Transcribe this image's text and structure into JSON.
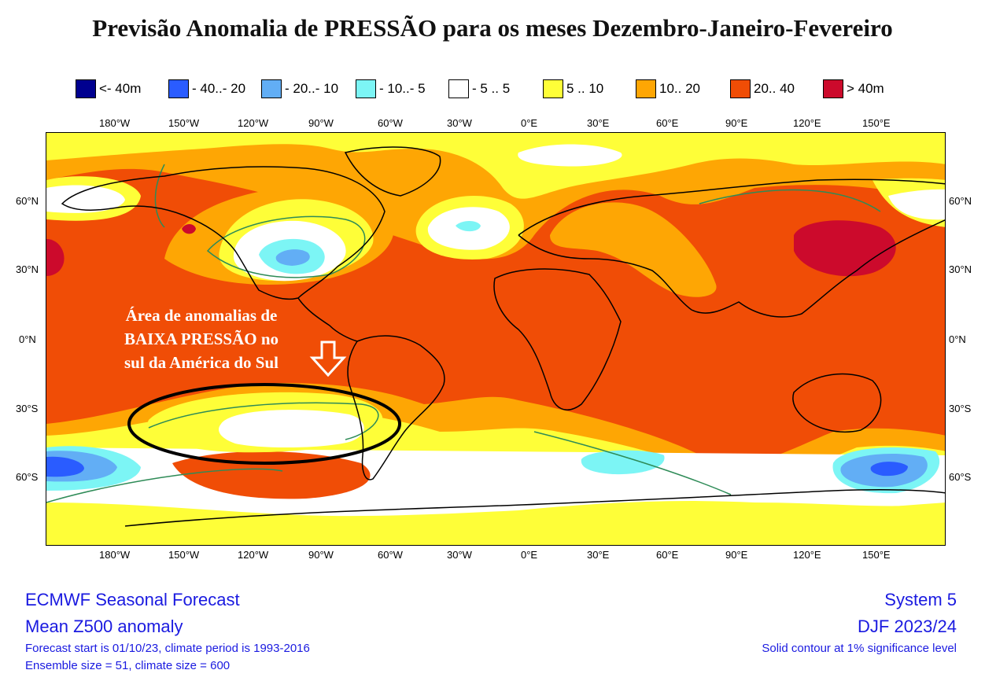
{
  "title": "Previsão Anomalia de PRESSÃO para os meses Dezembro-Janeiro-Fevereiro",
  "legend": [
    {
      "label": "<- 40m",
      "color": "#00008f"
    },
    {
      "label": "- 40..- 20",
      "color": "#2a5cff"
    },
    {
      "label": "- 20..- 10",
      "color": "#62aef5"
    },
    {
      "label": "- 10..- 5",
      "color": "#7cf5f5"
    },
    {
      "label": "- 5 .. 5",
      "color": "#ffffff"
    },
    {
      "label": "5 .. 10",
      "color": "#fefe38"
    },
    {
      "label": "10.. 20",
      "color": "#fea604"
    },
    {
      "label": "20.. 40",
      "color": "#f04d06"
    },
    {
      "label": "> 40m",
      "color": "#cc0a2c"
    }
  ],
  "lon_ticks": [
    "180°W",
    "150°W",
    "120°W",
    "90°W",
    "60°W",
    "30°W",
    "0°E",
    "30°E",
    "60°E",
    "90°E",
    "120°E",
    "150°E"
  ],
  "lat_ticks": [
    "60°N",
    "30°N",
    "0°N",
    "30°S",
    "60°S"
  ],
  "annotation": {
    "line1": "Área de anomalias de",
    "line2": "BAIXA PRESSÃO no",
    "line3": "sul da América do Sul"
  },
  "footer": {
    "left_line1": "ECMWF Seasonal Forecast",
    "left_line2": "Mean Z500 anomaly",
    "left_line3": "Forecast start is 01/10/23, climate period is 1993-2016",
    "left_line4": "Ensemble size = 51, climate size = 600",
    "right_line1": "System 5",
    "right_line2": "DJF 2023/24",
    "right_line3": "Solid contour at 1% significance level"
  },
  "colors": {
    "highlight_ellipse": "#000000",
    "arrow": "#ffffff",
    "significance_contour": "#2e8b57",
    "coastline": "#000000"
  }
}
